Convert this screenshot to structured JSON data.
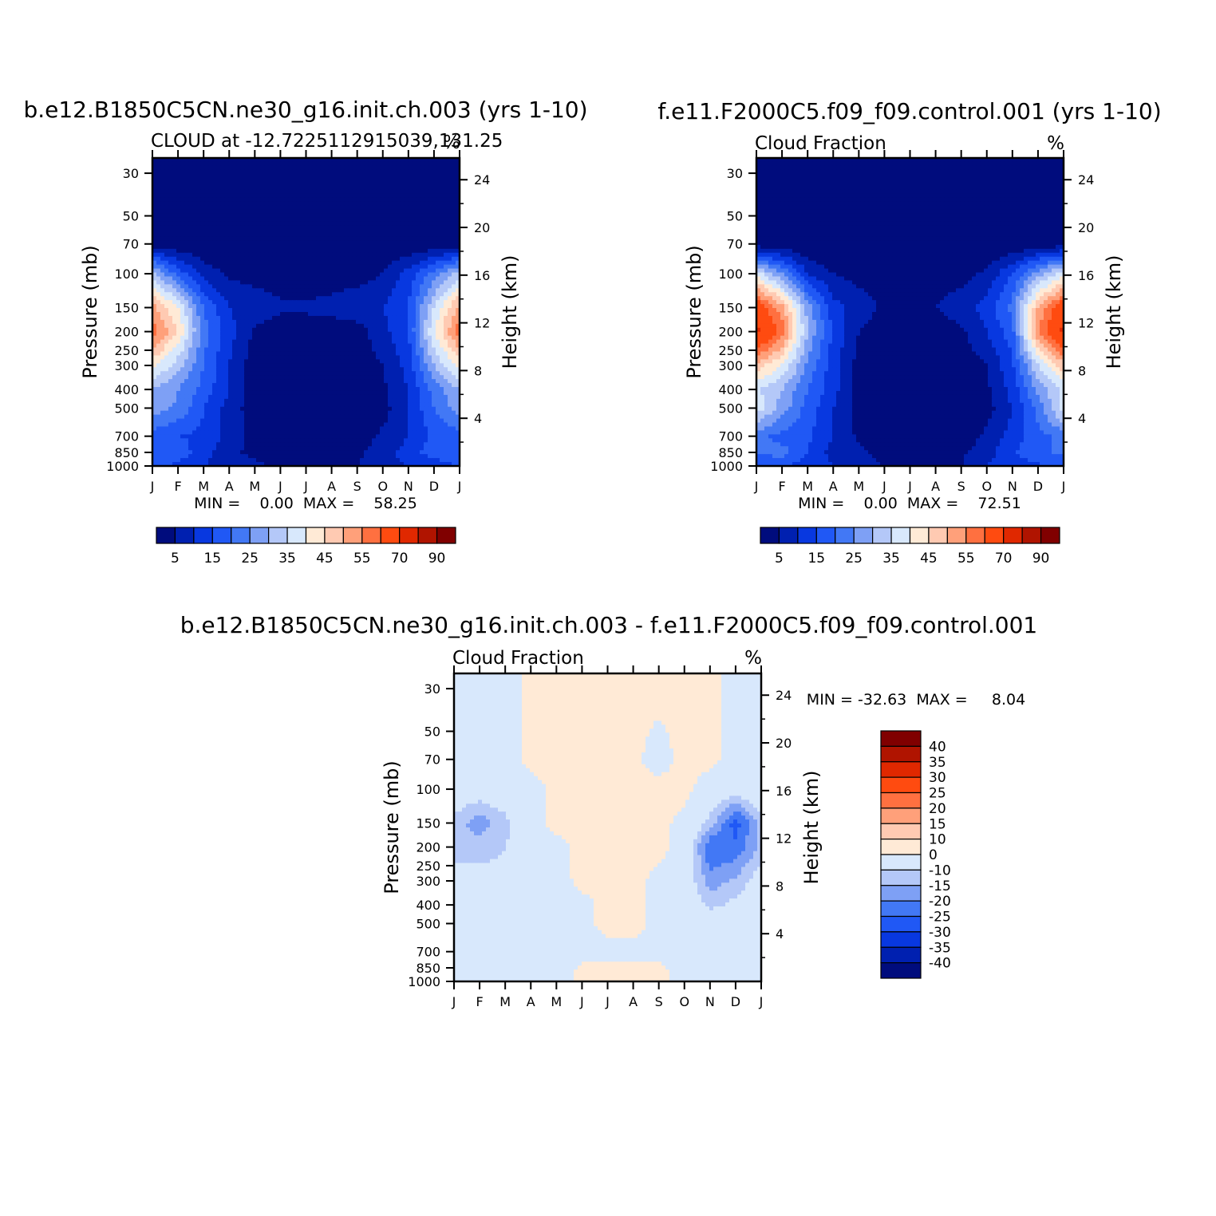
{
  "chart_data": [
    {
      "type": "heatmap",
      "title": "b.e12.B1850C5CN.ne30_g16.init.ch.003 (yrs 1-10)",
      "subtitle_left": "CLOUD at -12.7225112915039,131.25",
      "units": "%",
      "ylabel": "Pressure (mb)",
      "y2label": "Height (km)",
      "x_ticks": [
        "J",
        "F",
        "M",
        "A",
        "M",
        "J",
        "J",
        "A",
        "S",
        "O",
        "N",
        "D",
        "J"
      ],
      "y_ticks": [
        30,
        50,
        70,
        100,
        150,
        200,
        250,
        300,
        400,
        500,
        700,
        850,
        1000
      ],
      "y2_ticks": [
        24,
        20,
        16,
        12,
        8,
        4
      ],
      "ylim": [
        1000,
        25
      ],
      "stats": "MIN =    0.00  MAX =    58.25",
      "min": 0.0,
      "max": 58.25,
      "colorbar": {
        "labels": [
          "5",
          "15",
          "25",
          "35",
          "45",
          "55",
          "70",
          "90"
        ],
        "colors": [
          "#000c7d",
          "#0020b0",
          "#0838e0",
          "#2058f5",
          "#4278f5",
          "#7ea0f5",
          "#b4c8f8",
          "#d8e8fc",
          "#ffead6",
          "#ffcab2",
          "#ffa07a",
          "#ff7040",
          "#ff4b10",
          "#e02800",
          "#b01400",
          "#800000"
        ]
      },
      "field": {
        "months": [
          "J",
          "F",
          "M",
          "A",
          "M",
          "J",
          "J",
          "A",
          "S",
          "O",
          "N",
          "D",
          "J"
        ],
        "pressure_levels": [
          30,
          70,
          100,
          150,
          200,
          300,
          400,
          500,
          700,
          850,
          1000
        ],
        "values": [
          [
            0,
            0,
            0,
            0,
            0,
            0,
            0,
            0,
            0,
            0,
            0,
            0,
            0
          ],
          [
            2,
            1,
            0,
            0,
            0,
            0,
            0,
            0,
            0,
            0,
            0,
            1,
            2
          ],
          [
            32,
            18,
            8,
            4,
            3,
            2,
            1,
            2,
            3,
            5,
            12,
            22,
            32
          ],
          [
            52,
            40,
            20,
            10,
            8,
            6,
            6,
            7,
            8,
            10,
            15,
            35,
            52
          ],
          [
            58,
            45,
            22,
            12,
            4,
            2,
            2,
            2,
            3,
            8,
            15,
            40,
            58
          ],
          [
            42,
            32,
            20,
            10,
            2,
            1,
            1,
            1,
            2,
            5,
            12,
            30,
            42
          ],
          [
            30,
            25,
            18,
            10,
            2,
            1,
            1,
            1,
            1,
            4,
            10,
            22,
            30
          ],
          [
            28,
            24,
            15,
            8,
            2,
            1,
            1,
            1,
            1,
            3,
            10,
            20,
            28
          ],
          [
            18,
            15,
            14,
            8,
            3,
            1,
            1,
            1,
            2,
            6,
            10,
            16,
            18
          ],
          [
            16,
            18,
            12,
            6,
            4,
            2,
            2,
            2,
            4,
            8,
            12,
            18,
            16
          ],
          [
            16,
            14,
            10,
            8,
            6,
            4,
            4,
            4,
            5,
            8,
            10,
            12,
            16
          ]
        ]
      }
    },
    {
      "type": "heatmap",
      "title": "f.e11.F2000C5.f09_f09.control.001 (yrs 1-10)",
      "subtitle_left": "Cloud Fraction",
      "units": "%",
      "ylabel": "Pressure (mb)",
      "y2label": "Height (km)",
      "x_ticks": [
        "J",
        "F",
        "M",
        "A",
        "M",
        "J",
        "J",
        "A",
        "S",
        "O",
        "N",
        "D",
        "J"
      ],
      "y_ticks": [
        30,
        50,
        70,
        100,
        150,
        200,
        250,
        300,
        400,
        500,
        700,
        850,
        1000
      ],
      "y2_ticks": [
        24,
        20,
        16,
        12,
        8,
        4
      ],
      "ylim": [
        1000,
        25
      ],
      "stats": "MIN =    0.00  MAX =    72.51",
      "min": 0.0,
      "max": 72.51,
      "colorbar": {
        "labels": [
          "5",
          "15",
          "25",
          "35",
          "45",
          "55",
          "70",
          "90"
        ],
        "colors": [
          "#000c7d",
          "#0020b0",
          "#0838e0",
          "#2058f5",
          "#4278f5",
          "#7ea0f5",
          "#b4c8f8",
          "#d8e8fc",
          "#ffead6",
          "#ffcab2",
          "#ffa07a",
          "#ff7040",
          "#ff4b10",
          "#e02800",
          "#b01400",
          "#800000"
        ]
      },
      "field": {
        "months": [
          "J",
          "F",
          "M",
          "A",
          "M",
          "J",
          "J",
          "A",
          "S",
          "O",
          "N",
          "D",
          "J"
        ],
        "pressure_levels": [
          30,
          70,
          100,
          150,
          200,
          300,
          400,
          500,
          700,
          850,
          1000
        ],
        "values": [
          [
            0,
            0,
            0,
            0,
            0,
            0,
            0,
            0,
            0,
            0,
            0,
            0,
            0
          ],
          [
            2,
            1,
            0,
            0,
            0,
            0,
            0,
            0,
            0,
            0,
            0,
            1,
            2
          ],
          [
            38,
            25,
            10,
            5,
            3,
            2,
            1,
            2,
            3,
            6,
            15,
            28,
            38
          ],
          [
            66,
            52,
            28,
            12,
            8,
            4,
            4,
            5,
            8,
            12,
            22,
            50,
            66
          ],
          [
            72,
            58,
            30,
            14,
            5,
            2,
            2,
            2,
            4,
            10,
            18,
            55,
            72
          ],
          [
            48,
            40,
            24,
            12,
            3,
            1,
            1,
            1,
            2,
            5,
            14,
            35,
            48
          ],
          [
            36,
            30,
            20,
            12,
            3,
            1,
            1,
            1,
            1,
            4,
            12,
            26,
            36
          ],
          [
            38,
            28,
            18,
            10,
            3,
            1,
            1,
            1,
            1,
            3,
            10,
            22,
            38
          ],
          [
            22,
            18,
            16,
            10,
            4,
            1,
            1,
            1,
            2,
            6,
            12,
            18,
            22
          ],
          [
            20,
            22,
            15,
            8,
            6,
            3,
            2,
            2,
            4,
            8,
            14,
            20,
            20
          ],
          [
            18,
            16,
            12,
            10,
            8,
            5,
            4,
            4,
            5,
            10,
            12,
            14,
            18
          ]
        ]
      }
    },
    {
      "type": "heatmap",
      "title": "b.e12.B1850C5CN.ne30_g16.init.ch.003 - f.e11.F2000C5.f09_f09.control.001",
      "subtitle_left": "Cloud Fraction",
      "units": "%",
      "ylabel": "Pressure (mb)",
      "y2label": "Height (km)",
      "x_ticks": [
        "J",
        "F",
        "M",
        "A",
        "M",
        "J",
        "J",
        "A",
        "S",
        "O",
        "N",
        "D",
        "J"
      ],
      "y_ticks": [
        30,
        50,
        70,
        100,
        150,
        200,
        250,
        300,
        400,
        500,
        700,
        850,
        1000
      ],
      "y2_ticks": [
        24,
        20,
        16,
        12,
        8,
        4
      ],
      "ylim": [
        1000,
        25
      ],
      "stats": "MIN = -32.63  MAX =     8.04",
      "min": -32.63,
      "max": 8.04,
      "colorbar": {
        "labels": [
          "40",
          "35",
          "30",
          "25",
          "20",
          "15",
          "10",
          "0",
          "-10",
          "-15",
          "-20",
          "-25",
          "-30",
          "-35",
          "-40"
        ],
        "colors": [
          "#800000",
          "#b01400",
          "#e02800",
          "#ff4b10",
          "#ff7040",
          "#ffa07a",
          "#ffcab2",
          "#ffead6",
          "#d8e8fc",
          "#b4c8f8",
          "#7ea0f5",
          "#4278f5",
          "#2058f5",
          "#0838e0",
          "#0020b0",
          "#000c7d"
        ]
      },
      "field": {
        "months": [
          "J",
          "F",
          "M",
          "A",
          "M",
          "J",
          "J",
          "A",
          "S",
          "O",
          "N",
          "D",
          "J"
        ],
        "pressure_levels": [
          30,
          70,
          100,
          150,
          200,
          300,
          400,
          500,
          700,
          850,
          1000
        ],
        "values": [
          [
            -2,
            -2,
            -3,
            2,
            3,
            3,
            3,
            3,
            3,
            3,
            3,
            -3,
            -2
          ],
          [
            -2,
            -3,
            -4,
            2,
            3,
            3,
            3,
            2,
            -4,
            3,
            2,
            -3,
            -2
          ],
          [
            -4,
            -6,
            -4,
            -3,
            2,
            2,
            3,
            3,
            3,
            2,
            -4,
            -6,
            -4
          ],
          [
            -12,
            -18,
            -12,
            -3,
            2,
            2,
            2,
            3,
            2,
            -2,
            -12,
            -28,
            -12
          ],
          [
            -14,
            -12,
            -10,
            -3,
            -2,
            2,
            2,
            2,
            2,
            -3,
            -25,
            -24,
            -14
          ],
          [
            -6,
            -8,
            -9,
            -4,
            -3,
            2,
            2,
            2,
            -2,
            -4,
            -18,
            -14,
            -6
          ],
          [
            -4,
            -4,
            -4,
            -3,
            -2,
            -2,
            2,
            2,
            -2,
            -3,
            -12,
            -8,
            -4
          ],
          [
            -2,
            -3,
            -3,
            -3,
            -3,
            -2,
            2,
            2,
            -2,
            -3,
            -4,
            -4,
            -2
          ],
          [
            -3,
            -3,
            -3,
            -3,
            -2,
            -2,
            -2,
            -2,
            -2,
            -3,
            -3,
            -3,
            -3
          ],
          [
            -3,
            -3,
            -3,
            -3,
            -3,
            1,
            2,
            2,
            1,
            -2,
            -3,
            -3,
            -3
          ],
          [
            -3,
            -3,
            -3,
            -3,
            -3,
            2,
            1,
            2,
            2,
            -2,
            -3,
            -3,
            -3
          ]
        ]
      }
    }
  ]
}
